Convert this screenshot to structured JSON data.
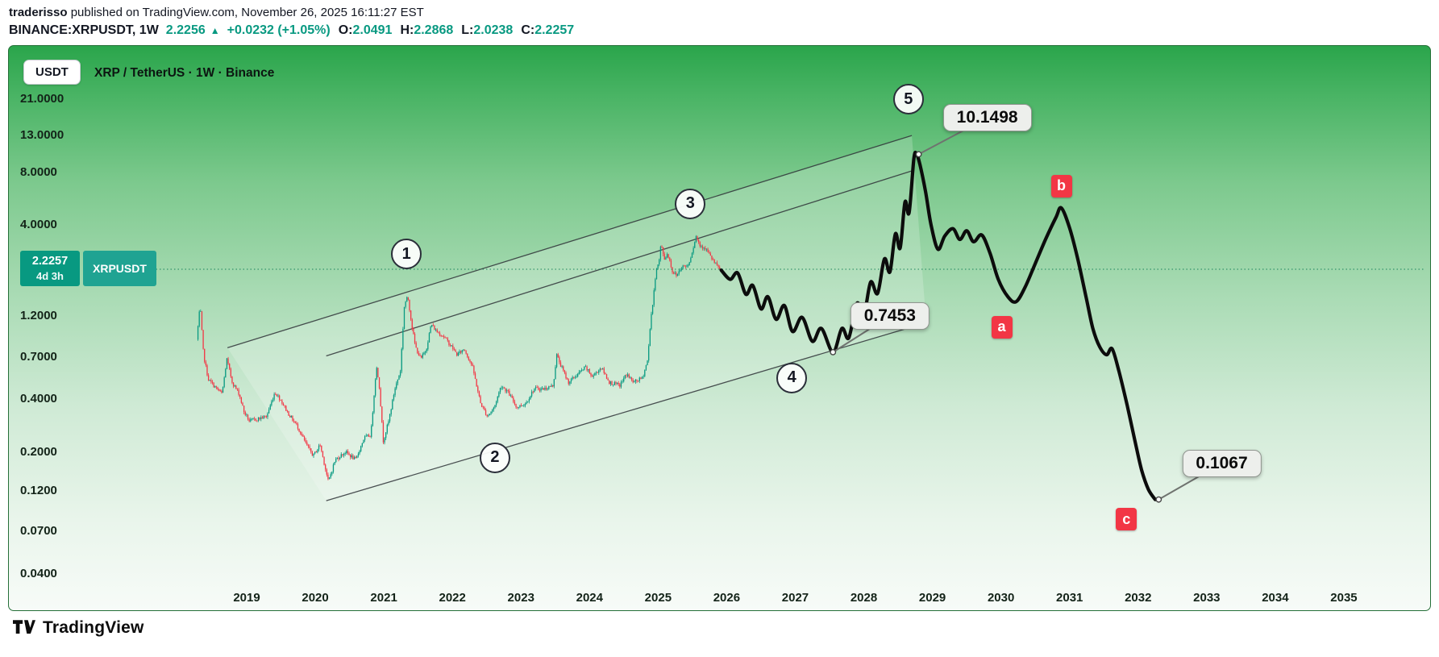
{
  "header": {
    "author": "traderisso",
    "published": " published on TradingView.com, November 26, 2025 16:11:27 EST",
    "symbol_line": {
      "symbol": "BINANCE:XRPUSDT, 1W",
      "last": "2.2256",
      "up_arrow": "▲",
      "change": "+0.0232 (+1.05%)",
      "o_label": "O:",
      "o": "2.0491",
      "h_label": "H:",
      "h": "2.2868",
      "l_label": "L:",
      "l": "2.0238",
      "c_label": "C:",
      "c": "2.2257"
    }
  },
  "chart": {
    "currency_button": "USDT",
    "title": "XRP / TetherUS · 1W · Binance",
    "price_badge": {
      "price": "2.2257",
      "countdown": "4d 3h",
      "ticker": "XRPUSDT"
    }
  },
  "footer": {
    "brand": "TradingView"
  },
  "colors": {
    "up": "#089981",
    "down": "#f23645",
    "accent": "#089981",
    "projection": "#0c0c0c",
    "channel": "#2f3338",
    "current_price_line": "#0a7a50",
    "red_label": "#f23645"
  },
  "chart_data": {
    "type": "candlestick+line-projection",
    "title": "XRP / TetherUS · 1W · Binance",
    "symbol": "XRP/USDT",
    "timeframe": "1W",
    "y_axis": {
      "scale": "log",
      "tick_labels": [
        "21.0000",
        "13.0000",
        "8.0000",
        "4.0000",
        "1.2000",
        "0.7000",
        "0.4000",
        "0.2000",
        "0.1200",
        "0.0700",
        "0.0400"
      ],
      "tick_values": [
        21,
        13,
        8,
        4,
        1.2,
        0.7,
        0.4,
        0.2,
        0.12,
        0.07,
        0.04
      ]
    },
    "x_axis": {
      "tick_labels": [
        "2019",
        "2020",
        "2021",
        "2022",
        "2023",
        "2024",
        "2025",
        "2026",
        "2027",
        "2028",
        "2029",
        "2030",
        "2031",
        "2032",
        "2033",
        "2034",
        "2035"
      ],
      "tick_values": [
        2019,
        2020,
        2021,
        2022,
        2023,
        2024,
        2025,
        2026,
        2027,
        2028,
        2029,
        2030,
        2031,
        2032,
        2033,
        2034,
        2035
      ]
    },
    "current_price": 2.2257,
    "history_range": [
      2018.28,
      2025.91
    ],
    "history_anchors": [
      [
        2018.28,
        0.88
      ],
      [
        2018.33,
        1.38
      ],
      [
        2018.38,
        0.72
      ],
      [
        2018.45,
        0.52
      ],
      [
        2018.55,
        0.47
      ],
      [
        2018.65,
        0.43
      ],
      [
        2018.72,
        0.68
      ],
      [
        2018.8,
        0.5
      ],
      [
        2018.9,
        0.43
      ],
      [
        2018.97,
        0.34
      ],
      [
        2019.05,
        0.3
      ],
      [
        2019.18,
        0.31
      ],
      [
        2019.3,
        0.32
      ],
      [
        2019.42,
        0.44
      ],
      [
        2019.5,
        0.4
      ],
      [
        2019.62,
        0.33
      ],
      [
        2019.75,
        0.28
      ],
      [
        2019.88,
        0.22
      ],
      [
        2019.98,
        0.19
      ],
      [
        2020.08,
        0.22
      ],
      [
        2020.2,
        0.135
      ],
      [
        2020.3,
        0.18
      ],
      [
        2020.45,
        0.2
      ],
      [
        2020.6,
        0.18
      ],
      [
        2020.72,
        0.24
      ],
      [
        2020.82,
        0.25
      ],
      [
        2020.9,
        0.62
      ],
      [
        2020.94,
        0.5
      ],
      [
        2021.0,
        0.23
      ],
      [
        2021.08,
        0.3
      ],
      [
        2021.17,
        0.46
      ],
      [
        2021.25,
        0.58
      ],
      [
        2021.31,
        1.4
      ],
      [
        2021.36,
        1.55
      ],
      [
        2021.42,
        1.05
      ],
      [
        2021.47,
        0.8
      ],
      [
        2021.55,
        0.68
      ],
      [
        2021.63,
        0.78
      ],
      [
        2021.7,
        1.08
      ],
      [
        2021.78,
        0.98
      ],
      [
        2021.88,
        0.92
      ],
      [
        2021.98,
        0.82
      ],
      [
        2022.08,
        0.72
      ],
      [
        2022.18,
        0.78
      ],
      [
        2022.3,
        0.62
      ],
      [
        2022.42,
        0.38
      ],
      [
        2022.52,
        0.32
      ],
      [
        2022.62,
        0.36
      ],
      [
        2022.72,
        0.48
      ],
      [
        2022.82,
        0.44
      ],
      [
        2022.95,
        0.36
      ],
      [
        2023.08,
        0.38
      ],
      [
        2023.2,
        0.46
      ],
      [
        2023.35,
        0.46
      ],
      [
        2023.48,
        0.48
      ],
      [
        2023.53,
        0.72
      ],
      [
        2023.58,
        0.64
      ],
      [
        2023.7,
        0.5
      ],
      [
        2023.82,
        0.55
      ],
      [
        2023.95,
        0.61
      ],
      [
        2024.05,
        0.54
      ],
      [
        2024.18,
        0.61
      ],
      [
        2024.3,
        0.5
      ],
      [
        2024.45,
        0.48
      ],
      [
        2024.55,
        0.56
      ],
      [
        2024.65,
        0.5
      ],
      [
        2024.78,
        0.53
      ],
      [
        2024.86,
        0.68
      ],
      [
        2024.9,
        1.15
      ],
      [
        2024.94,
        1.5
      ],
      [
        2024.98,
        2.25
      ],
      [
        2025.02,
        2.4
      ],
      [
        2025.05,
        3.1
      ],
      [
        2025.1,
        2.55
      ],
      [
        2025.15,
        2.75
      ],
      [
        2025.22,
        2.15
      ],
      [
        2025.28,
        2.05
      ],
      [
        2025.35,
        2.3
      ],
      [
        2025.45,
        2.35
      ],
      [
        2025.52,
        2.95
      ],
      [
        2025.56,
        3.45
      ],
      [
        2025.62,
        3.05
      ],
      [
        2025.7,
        2.95
      ],
      [
        2025.78,
        2.6
      ],
      [
        2025.84,
        2.4
      ],
      [
        2025.9,
        2.23
      ]
    ],
    "projection": [
      [
        2025.92,
        2.2
      ],
      [
        2026.05,
        1.95
      ],
      [
        2026.16,
        2.12
      ],
      [
        2026.28,
        1.6
      ],
      [
        2026.38,
        1.8
      ],
      [
        2026.5,
        1.32
      ],
      [
        2026.6,
        1.55
      ],
      [
        2026.72,
        1.15
      ],
      [
        2026.84,
        1.38
      ],
      [
        2026.96,
        0.98
      ],
      [
        2027.1,
        1.18
      ],
      [
        2027.25,
        0.86
      ],
      [
        2027.38,
        1.02
      ],
      [
        2027.55,
        0.7453
      ],
      [
        2027.68,
        1.02
      ],
      [
        2027.78,
        0.9
      ],
      [
        2027.9,
        1.42
      ],
      [
        2028.0,
        1.22
      ],
      [
        2028.1,
        1.88
      ],
      [
        2028.2,
        1.62
      ],
      [
        2028.3,
        2.55
      ],
      [
        2028.38,
        2.15
      ],
      [
        2028.46,
        3.55
      ],
      [
        2028.53,
        2.95
      ],
      [
        2028.6,
        5.4
      ],
      [
        2028.66,
        4.7
      ],
      [
        2028.73,
        9.6
      ],
      [
        2028.77,
        10.15
      ],
      [
        2028.82,
        8.8
      ],
      [
        2028.9,
        6.2
      ],
      [
        2028.98,
        4.0
      ],
      [
        2029.08,
        2.9
      ],
      [
        2029.18,
        3.45
      ],
      [
        2029.3,
        3.8
      ],
      [
        2029.4,
        3.3
      ],
      [
        2029.5,
        3.7
      ],
      [
        2029.6,
        3.2
      ],
      [
        2029.72,
        3.5
      ],
      [
        2029.84,
        2.75
      ],
      [
        2029.96,
        1.95
      ],
      [
        2030.1,
        1.55
      ],
      [
        2030.22,
        1.45
      ],
      [
        2030.35,
        1.75
      ],
      [
        2030.5,
        2.4
      ],
      [
        2030.65,
        3.3
      ],
      [
        2030.8,
        4.4
      ],
      [
        2030.88,
        5.0
      ],
      [
        2031.0,
        3.85
      ],
      [
        2031.12,
        2.55
      ],
      [
        2031.24,
        1.55
      ],
      [
        2031.34,
        1.02
      ],
      [
        2031.44,
        0.8
      ],
      [
        2031.54,
        0.72
      ],
      [
        2031.62,
        0.78
      ],
      [
        2031.72,
        0.58
      ],
      [
        2031.84,
        0.37
      ],
      [
        2031.95,
        0.235
      ],
      [
        2032.05,
        0.158
      ],
      [
        2032.15,
        0.122
      ],
      [
        2032.25,
        0.1067
      ]
    ],
    "channel_lines": [
      [
        [
          2018.72,
          0.79
        ],
        [
          2028.7,
          13.0
        ]
      ],
      [
        [
          2020.16,
          0.71
        ],
        [
          2028.7,
          8.15
        ]
      ],
      [
        [
          2020.16,
          0.105
        ],
        [
          2028.91,
          1.1
        ]
      ]
    ],
    "wave_labels": [
      {
        "text": "1",
        "year": 2021.33,
        "price": 2.72
      },
      {
        "text": "2",
        "year": 2022.62,
        "price": 0.185
      },
      {
        "text": "3",
        "year": 2025.47,
        "price": 5.27
      },
      {
        "text": "4",
        "year": 2026.95,
        "price": 0.53
      },
      {
        "text": "5",
        "year": 2028.65,
        "price": 21.0
      }
    ],
    "abc_labels": [
      {
        "text": "a",
        "year": 2030.01,
        "price": 1.04
      },
      {
        "text": "b",
        "year": 2030.88,
        "price": 6.66
      },
      {
        "text": "c",
        "year": 2031.83,
        "price": 0.082
      }
    ],
    "callouts": [
      {
        "text": "10.1498",
        "anchor": [
          2028.8,
          10.1498
        ],
        "label_at": [
          2029.8,
          16.4
        ]
      },
      {
        "text": "0.7453",
        "anchor": [
          2027.55,
          0.7453
        ],
        "label_at": [
          2028.38,
          1.2
        ]
      },
      {
        "text": "0.1067",
        "anchor": [
          2032.3,
          0.1067
        ],
        "label_at": [
          2033.22,
          0.172
        ]
      }
    ]
  }
}
